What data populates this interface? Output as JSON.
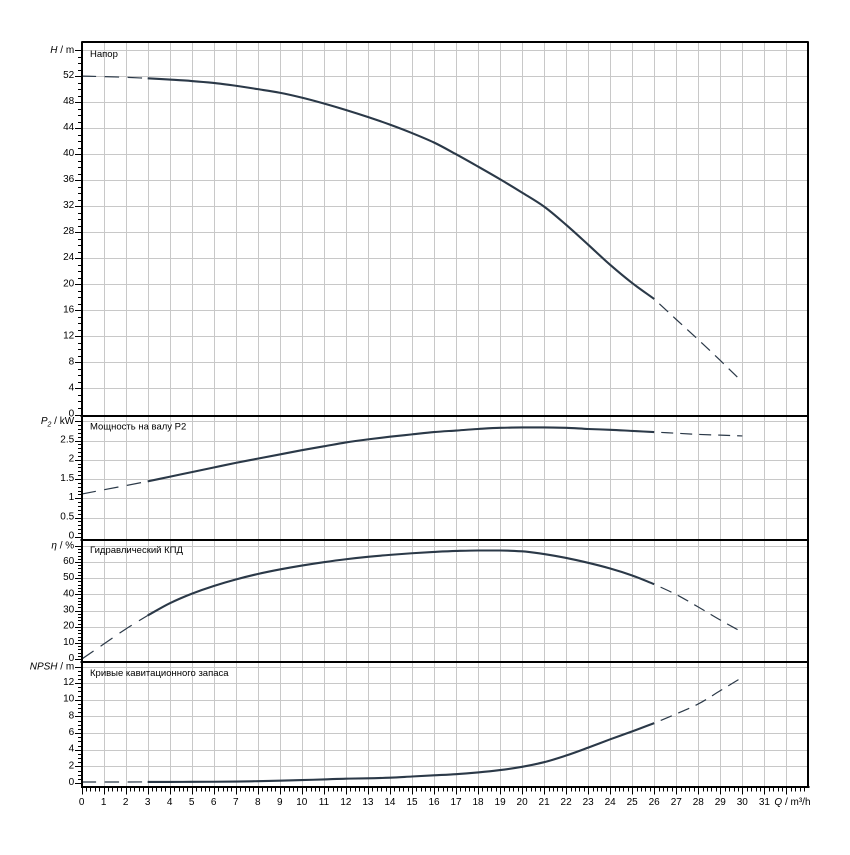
{
  "chart_data": {
    "type": "line",
    "x_axis": {
      "label": "Q / m³/h",
      "label_parts": [
        {
          "t": "Q",
          "i": true
        },
        {
          "t": " / m³/h",
          "i": false
        }
      ],
      "range": [
        0,
        33
      ],
      "major_step": 1,
      "minor_step": 0.2,
      "labeled_tick_min": 0,
      "labeled_tick_max": 31,
      "grid": true
    },
    "style": {
      "curve_color": "#2b3948",
      "grid_color": "#c8c8c8",
      "axis_color": "#000000",
      "text_color": "#000000",
      "background": "#ffffff"
    },
    "solid_q_range": [
      3.05,
      26.05
    ],
    "dashed_q_end": 29.9,
    "panels": [
      {
        "key": "head",
        "title": "Напор",
        "unit_label": "H / m",
        "unit_parts": [
          {
            "t": "H",
            "i": true
          },
          {
            "t": " / m",
            "i": false
          }
        ],
        "y_axis": {
          "major_step": 4,
          "minor_step": 1,
          "labeled_max": 52,
          "top_tick": 56,
          "grid": true
        },
        "series": {
          "x_dash_left": [
            0,
            1,
            2,
            3
          ],
          "y_dash_left": [
            52.0,
            51.93,
            51.82,
            51.67
          ],
          "x_solid": [
            3,
            4,
            5,
            6,
            7,
            8,
            9,
            10,
            11,
            12,
            13,
            14,
            15,
            16,
            17,
            18,
            19,
            20,
            21,
            22,
            23,
            24,
            25,
            26
          ],
          "y_solid": [
            51.67,
            51.47,
            51.25,
            50.95,
            50.52,
            50.0,
            49.45,
            48.7,
            47.8,
            46.8,
            45.72,
            44.55,
            43.25,
            41.8,
            40.0,
            38.1,
            36.15,
            34.1,
            31.95,
            29.15,
            26.1,
            23.0,
            20.2,
            17.75
          ],
          "x_dash_right": [
            26,
            27,
            28,
            29,
            30
          ],
          "y_dash_right": [
            17.75,
            14.6,
            11.5,
            8.3,
            5.0
          ]
        }
      },
      {
        "key": "power",
        "title": "Мощность на валу P2",
        "unit_label": "P2 / kW",
        "unit_parts": [
          {
            "t": "P",
            "i": true
          },
          {
            "t": "2",
            "i": true,
            "sub": true
          },
          {
            "t": " / kW",
            "i": false
          }
        ],
        "y_axis": {
          "major_step": 0.5,
          "minor_step": 0.1,
          "labeled_max": 2.5,
          "top_tick": 3.0,
          "grid": true,
          "decimals": 1
        },
        "series": {
          "x_dash_left": [
            0,
            1,
            2,
            3
          ],
          "y_dash_left": [
            1.11,
            1.22,
            1.33,
            1.44
          ],
          "x_solid": [
            3,
            4,
            5,
            6,
            7,
            8,
            9,
            10,
            11,
            12,
            13,
            14,
            15,
            16,
            17,
            18,
            19,
            20,
            21,
            22,
            23,
            24,
            25,
            26
          ],
          "y_solid": [
            1.44,
            1.56,
            1.68,
            1.8,
            1.92,
            2.03,
            2.14,
            2.25,
            2.35,
            2.45,
            2.53,
            2.6,
            2.66,
            2.72,
            2.76,
            2.8,
            2.83,
            2.84,
            2.84,
            2.83,
            2.8,
            2.78,
            2.75,
            2.72
          ],
          "x_dash_right": [
            26,
            27,
            28,
            29,
            30
          ],
          "y_dash_right": [
            2.72,
            2.69,
            2.66,
            2.64,
            2.62
          ]
        }
      },
      {
        "key": "efficiency",
        "title": "Гидравлический КПД",
        "unit_label": "η / %",
        "unit_parts": [
          {
            "t": "η",
            "i": true
          },
          {
            "t": " / %",
            "i": false
          }
        ],
        "y_axis": {
          "major_step": 10,
          "minor_step": 2,
          "labeled_max": 60,
          "top_tick": 70,
          "grid": true
        },
        "series": {
          "x_dash_left": [
            0,
            1,
            2,
            3
          ],
          "y_dash_left": [
            0,
            9.3,
            18.6,
            27.0
          ],
          "x_solid": [
            3,
            4,
            5,
            6,
            7,
            8,
            9,
            10,
            11,
            12,
            13,
            14,
            15,
            16,
            17,
            18,
            19,
            20,
            21,
            22,
            23,
            24,
            25,
            26
          ],
          "y_solid": [
            27.0,
            34.5,
            40.4,
            45.2,
            49.2,
            52.6,
            55.4,
            57.8,
            59.9,
            61.7,
            63.2,
            64.4,
            65.4,
            66.2,
            66.8,
            67.1,
            67.1,
            66.6,
            64.9,
            62.5,
            59.5,
            56.0,
            51.7,
            46.3
          ],
          "x_dash_right": [
            26,
            27,
            28,
            29,
            30
          ],
          "y_dash_right": [
            46.3,
            39.9,
            32.2,
            24.2,
            16.6
          ]
        }
      },
      {
        "key": "npsh",
        "title": "Кривые кавитационного запаса",
        "unit_label": "NPSH / m",
        "unit_parts": [
          {
            "t": "NPSH",
            "i": true
          },
          {
            "t": " / m",
            "i": false
          }
        ],
        "y_axis": {
          "major_step": 2,
          "minor_step": 0.5,
          "labeled_max": 12,
          "top_tick": 14,
          "grid": true
        },
        "series": {
          "x_dash_left": [
            0,
            1,
            2,
            3
          ],
          "y_dash_left": [
            0.12,
            0.12,
            0.12,
            0.13
          ],
          "x_solid": [
            3,
            4,
            5,
            6,
            7,
            8,
            9,
            10,
            11,
            12,
            13,
            14,
            15,
            16,
            17,
            18,
            19,
            20,
            21,
            22,
            23,
            24,
            25,
            26
          ],
          "y_solid": [
            0.13,
            0.13,
            0.14,
            0.15,
            0.17,
            0.22,
            0.28,
            0.35,
            0.43,
            0.52,
            0.56,
            0.64,
            0.78,
            0.92,
            1.06,
            1.27,
            1.55,
            1.95,
            2.5,
            3.3,
            4.25,
            5.25,
            6.2,
            7.2
          ],
          "x_dash_right": [
            26,
            27,
            28,
            29,
            30
          ],
          "y_dash_right": [
            7.2,
            8.3,
            9.5,
            11.1,
            12.7
          ]
        }
      }
    ]
  }
}
